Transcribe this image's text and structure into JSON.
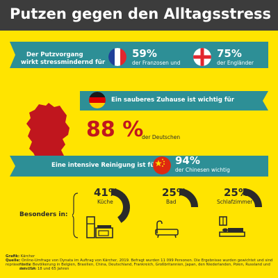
{
  "header": {
    "title": "Putzen gegen den Alltagsstress"
  },
  "row1": {
    "label_line1": "Der Putzvorgang",
    "label_line2": "wirkt stressmindernd für",
    "france_pct": "59%",
    "france_text": "der Franzosen und",
    "england_pct": "75%",
    "england_text": "der Engländer"
  },
  "row2": {
    "label": "Ein sauberes Zuhause ist wichtig für",
    "pct": "88 %",
    "text": "der Deutschen"
  },
  "row3": {
    "label": "Eine intensive Reinigung ist für",
    "pct": "94%",
    "text": "der Chinesen wichtig"
  },
  "rooms_label": "Besonders in:",
  "chart_data": {
    "type": "pie",
    "title": "Besonders in:",
    "categories": [
      "Küche",
      "Bad",
      "Schlafzimmer"
    ],
    "labels": [
      "41%",
      "25%",
      "25%"
    ],
    "values": [
      41,
      25,
      25
    ],
    "unit": "%",
    "colors": {
      "accent": "#2a2a2a",
      "background": "#ffe400",
      "ribbon": "#2d8f96"
    }
  },
  "footer": {
    "grafik_label": "Grafik:",
    "grafik_value": "Kärcher",
    "quelle_label": "Quelle:",
    "quelle_value_line1": "Online-Umfrage von Dynata im Auftrag von Kärcher, 2019. Befragt wurden 11 099 Personen. Die Ergebnisse wurden gewichtet und sind repräsentativ",
    "quelle_value_line2": "für die Bevölkerung in Belgien, Brasilien, China, Deutschland, Frankreich, Großbritannien, Japan, den Niederlanden, Polen, Russland und den USA",
    "quelle_value_line3": "zwischen 18 und 65 Jahren"
  }
}
